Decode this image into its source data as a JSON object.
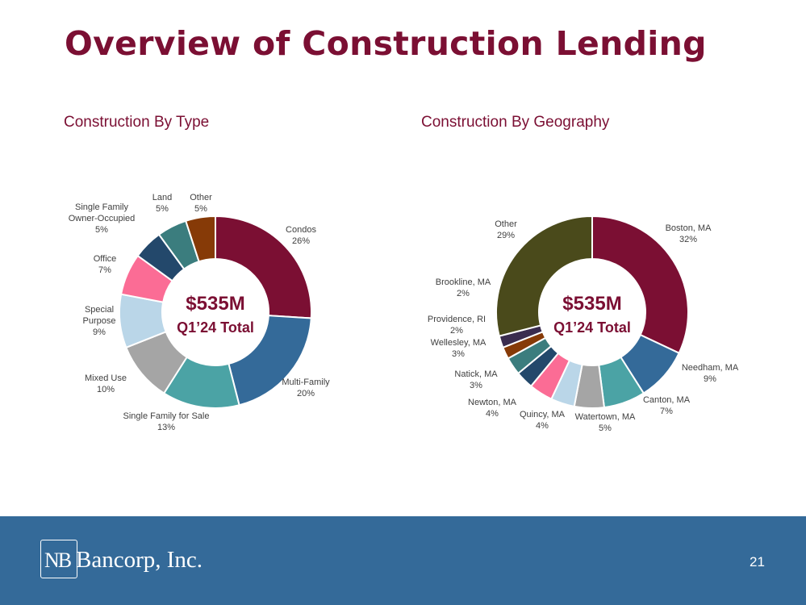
{
  "page": {
    "title": "Overview of Construction Lending",
    "page_number": "21"
  },
  "footer": {
    "logo_monogram": "NB",
    "logo_name": "Bancorp, Inc."
  },
  "chart_data": [
    {
      "type": "donut",
      "title": "Construction By Type",
      "center_value": "$535M",
      "center_label": "Q1’24 Total",
      "slices": [
        {
          "label": "Condos",
          "value": 26,
          "display": "26%",
          "color": "#7b0f33"
        },
        {
          "label": "Multi-Family",
          "value": 20,
          "display": "20%",
          "color": "#346a99"
        },
        {
          "label": "Single Family for Sale",
          "value": 13,
          "display": "13%",
          "color": "#4ba3a5"
        },
        {
          "label": "Mixed Use",
          "value": 10,
          "display": "10%",
          "color": "#a5a5a5"
        },
        {
          "label": "Special Purpose",
          "value": 9,
          "display": "9%",
          "color": "#bad6e8"
        },
        {
          "label": "Office",
          "value": 7,
          "display": "7%",
          "color": "#fb6c95"
        },
        {
          "label": "Single Family Owner-Occupied",
          "value": 5,
          "display": "5%",
          "color": "#23486b"
        },
        {
          "label": "Land",
          "value": 5,
          "display": "5%",
          "color": "#3b7d7e"
        },
        {
          "label": "Other",
          "value": 5,
          "display": "5%",
          "color": "#863a07"
        }
      ]
    },
    {
      "type": "donut",
      "title": "Construction By Geography",
      "center_value": "$535M",
      "center_label": "Q1’24 Total",
      "slices": [
        {
          "label": "Boston, MA",
          "value": 32,
          "display": "32%",
          "color": "#7b0f33"
        },
        {
          "label": "Needham, MA",
          "value": 9,
          "display": "9%",
          "color": "#346a99"
        },
        {
          "label": "Canton, MA",
          "value": 7,
          "display": "7%",
          "color": "#4ba3a5"
        },
        {
          "label": "Watertown, MA",
          "value": 5,
          "display": "5%",
          "color": "#a5a5a5"
        },
        {
          "label": "Quincy, MA",
          "value": 4,
          "display": "4%",
          "color": "#bad6e8"
        },
        {
          "label": "Newton, MA",
          "value": 4,
          "display": "4%",
          "color": "#fb6c95"
        },
        {
          "label": "Natick, MA",
          "value": 3,
          "display": "3%",
          "color": "#23486b"
        },
        {
          "label": "Wellesley, MA",
          "value": 3,
          "display": "3%",
          "color": "#3b7d7e"
        },
        {
          "label": "Providence, RI",
          "value": 2,
          "display": "2%",
          "color": "#863a07"
        },
        {
          "label": "Brookline, MA",
          "value": 2,
          "display": "2%",
          "color": "#3a2c4f"
        },
        {
          "label": "Other",
          "value": 29,
          "display": "29%",
          "color": "#4a4a1b"
        }
      ]
    }
  ]
}
